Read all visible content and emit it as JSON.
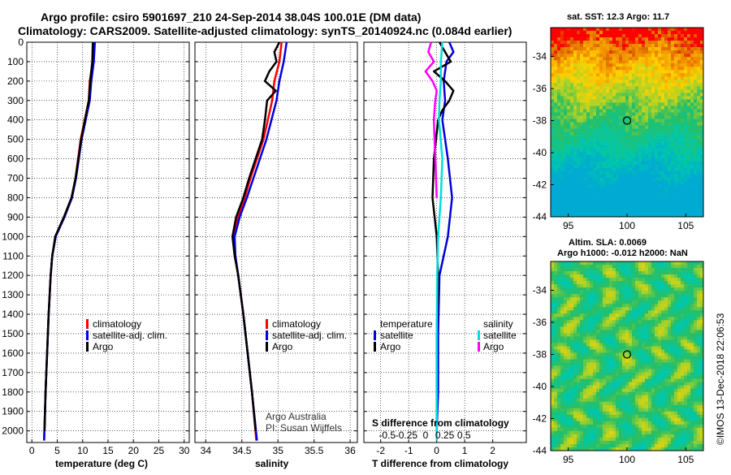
{
  "header": {
    "line1": "Argo profile: csiro 5901697_210 24-Sep-2014 38.04S 100.01E (DM data)",
    "line2": "Climatology: CARS2009. Satellite-adjusted climatology: synTS_20140924.nc (0.084d earlier)"
  },
  "depth_ticks": [
    "0",
    "100",
    "200",
    "300",
    "400",
    "500",
    "600",
    "700",
    "800",
    "900",
    "1000",
    "1100",
    "1200",
    "1300",
    "1400",
    "1500",
    "1600",
    "1700",
    "1800",
    "1900",
    "2000"
  ],
  "colors": {
    "climatology": "#ff0000",
    "satellite": "#0000dd",
    "argo": "#000000",
    "sat_sal": "#00dddd",
    "argo_sal": "#ff00ff"
  },
  "chart_data": [
    {
      "type": "line",
      "id": "temperature",
      "xlabel": "temperature (deg C)",
      "ylabel": "",
      "xlim": [
        -1,
        31
      ],
      "ylim": [
        2060,
        0
      ],
      "x_ticks": [
        "0",
        "5",
        "10",
        "15",
        "20",
        "25",
        "30"
      ],
      "x_tick_values": [
        0,
        5,
        10,
        15,
        20,
        25,
        30
      ],
      "legend": {
        "position": "lower-right",
        "items": [
          "climatology",
          "satellite-adj. clim.",
          "Argo"
        ]
      },
      "series": [
        {
          "name": "climatology",
          "color": "#ff0000",
          "depth": [
            0,
            100,
            200,
            300,
            500,
            700,
            800,
            900,
            1000,
            1100,
            1200,
            1400,
            1600,
            1800,
            2050
          ],
          "values": [
            12.2,
            12.0,
            11.4,
            11.2,
            9.6,
            8.6,
            7.9,
            6.4,
            4.7,
            4.0,
            3.7,
            3.3,
            3.0,
            2.7,
            2.4
          ]
        },
        {
          "name": "satellite-adj. clim.",
          "color": "#0000dd",
          "depth": [
            0,
            100,
            200,
            300,
            500,
            700,
            800,
            900,
            1000,
            1100,
            1200,
            1400,
            1600,
            1800,
            2050
          ],
          "values": [
            12.4,
            12.2,
            11.7,
            11.4,
            9.8,
            8.7,
            7.9,
            6.4,
            4.7,
            4.0,
            3.7,
            3.3,
            3.0,
            2.7,
            2.4
          ]
        },
        {
          "name": "Argo",
          "color": "#000000",
          "depth": [
            0,
            100,
            200,
            300,
            500,
            700,
            800,
            900,
            1000,
            1100,
            1200,
            1400,
            1600,
            1800,
            2000
          ],
          "values": [
            12.0,
            11.9,
            11.5,
            11.2,
            9.7,
            8.6,
            7.8,
            6.3,
            4.6,
            4.0,
            3.7,
            3.3,
            3.0,
            2.7,
            2.5
          ]
        }
      ]
    },
    {
      "type": "line",
      "id": "salinity",
      "xlabel": "salinity",
      "ylabel": "",
      "xlim": [
        33.85,
        36.1
      ],
      "ylim": [
        2060,
        0
      ],
      "x_ticks": [
        "34",
        "34.5",
        "35",
        "35.5",
        "36"
      ],
      "x_tick_values": [
        34,
        34.5,
        35,
        35.5,
        36
      ],
      "legend": {
        "position": "lower-right",
        "items": [
          "climatology",
          "satellite-adj. clim.",
          "Argo"
        ]
      },
      "annotations": [
        "Argo Australia",
        "PI: Susan Wijffels"
      ],
      "series": [
        {
          "name": "climatology",
          "color": "#ff0000",
          "depth": [
            0,
            100,
            200,
            300,
            500,
            700,
            800,
            900,
            1000,
            1100,
            1200,
            1400,
            1600,
            1800,
            2050
          ],
          "values": [
            35.05,
            35.02,
            34.95,
            34.92,
            34.8,
            34.62,
            34.54,
            34.45,
            34.39,
            34.41,
            34.45,
            34.52,
            34.58,
            34.64,
            34.7
          ]
        },
        {
          "name": "satellite-adj. clim.",
          "color": "#0000dd",
          "depth": [
            0,
            100,
            200,
            300,
            500,
            700,
            800,
            900,
            1000,
            1100,
            1200,
            1400,
            1600,
            1800,
            2050
          ],
          "values": [
            35.12,
            35.08,
            35.02,
            34.98,
            34.84,
            34.66,
            34.57,
            34.47,
            34.4,
            34.41,
            34.45,
            34.52,
            34.58,
            34.64,
            34.71
          ]
        },
        {
          "name": "Argo",
          "color": "#000000",
          "depth": [
            0,
            50,
            100,
            150,
            200,
            250,
            300,
            400,
            500,
            700,
            800,
            900,
            1000,
            1100,
            1200,
            1400,
            1600,
            1800,
            2000
          ],
          "values": [
            35.02,
            34.95,
            34.98,
            34.88,
            34.82,
            34.97,
            34.85,
            34.82,
            34.78,
            34.6,
            34.52,
            34.42,
            34.37,
            34.4,
            34.45,
            34.52,
            34.58,
            34.64,
            34.69
          ]
        }
      ]
    },
    {
      "type": "line",
      "id": "difference",
      "xlabel": "T difference from climatology",
      "xlabel2": "S difference from climatology",
      "xlim": [
        -2.6,
        3.2
      ],
      "ylim": [
        2060,
        0
      ],
      "x_ticks": [
        "-2",
        "-1",
        "0",
        "1",
        "2"
      ],
      "x_tick_values": [
        -2,
        -1,
        0,
        1,
        2
      ],
      "top_ticks": [
        "-0.5",
        "-0.25",
        "0",
        "0.25",
        "0.5"
      ],
      "top_tick_values": [
        -0.5,
        -0.25,
        0,
        0.25,
        0.5
      ],
      "legend": {
        "position": "lower",
        "temperature_title": "temperature",
        "salinity_title": "salinity",
        "items": [
          "satellite",
          "Argo",
          "satellite",
          "Argo"
        ]
      },
      "series": [
        {
          "name": "temperature satellite",
          "color": "#0000dd",
          "depth": [
            0,
            50,
            100,
            200,
            300,
            400,
            600,
            800,
            1000,
            1200,
            1500,
            1800,
            2000
          ],
          "values": [
            0.45,
            0.6,
            0.35,
            0.25,
            0.3,
            0.2,
            0.4,
            0.55,
            0.4,
            0.1,
            0.05,
            0.05,
            0.0
          ]
        },
        {
          "name": "temperature Argo",
          "color": "#000000",
          "depth": [
            0,
            50,
            100,
            150,
            200,
            250,
            300,
            350,
            400,
            600,
            800,
            1000,
            1200,
            1500,
            1800,
            2000
          ],
          "values": [
            0.1,
            0.3,
            0.5,
            -0.1,
            0.3,
            0.6,
            0.45,
            0.2,
            0.05,
            -0.1,
            -0.15,
            0.0,
            0.05,
            0.0,
            0.0,
            0.0
          ]
        },
        {
          "name": "salinity satellite",
          "color": "#00dddd",
          "depth": [
            0,
            100,
            200,
            300,
            400,
            600,
            800,
            1000,
            1200,
            1500,
            1800,
            2050
          ],
          "values": [
            0.2,
            0.15,
            0.15,
            0.1,
            0.08,
            0.2,
            0.15,
            0.05,
            0.02,
            0.0,
            0.0,
            0.0
          ]
        },
        {
          "name": "salinity Argo",
          "color": "#ff00ff",
          "depth": [
            0,
            50,
            100,
            150,
            200,
            250,
            300,
            400,
            600,
            800
          ],
          "values": [
            -0.2,
            -0.3,
            -0.1,
            -0.4,
            -0.15,
            0.0,
            -0.05,
            -0.1,
            -0.05,
            0.0
          ]
        }
      ]
    }
  ],
  "maps": {
    "sst": {
      "title": "sat. SST: 12.3 Argo: 11.7",
      "y_ticks": [
        "-34",
        "-36",
        "-38",
        "-40",
        "-42",
        "-44"
      ],
      "y_tick_values": [
        -34,
        -36,
        -38,
        -40,
        -42,
        -44
      ],
      "x_ticks": [
        "95",
        "100",
        "105"
      ],
      "x_tick_values": [
        95,
        100,
        105
      ],
      "lat": [
        -44,
        -32.2
      ],
      "lon": [
        93.5,
        106.5
      ],
      "marker": {
        "lon": 100.0,
        "lat": -38.0
      }
    },
    "sla": {
      "title1": "Altim. SLA: 0.0069",
      "title2": "Argo h1000: -0.012 h2000: NaN",
      "y_ticks": [
        "-34",
        "-36",
        "-38",
        "-40",
        "-42",
        "-44"
      ],
      "y_tick_values": [
        -34,
        -36,
        -38,
        -40,
        -42,
        -44
      ],
      "x_ticks": [
        "95",
        "100",
        "105"
      ],
      "x_tick_values": [
        95,
        100,
        105
      ],
      "lat": [
        -44,
        -32.2
      ],
      "lon": [
        93.5,
        106.5
      ],
      "marker": {
        "lon": 100.0,
        "lat": -38.0
      }
    }
  },
  "credit": "©IMOS 13-Dec-2018 22:06:53"
}
